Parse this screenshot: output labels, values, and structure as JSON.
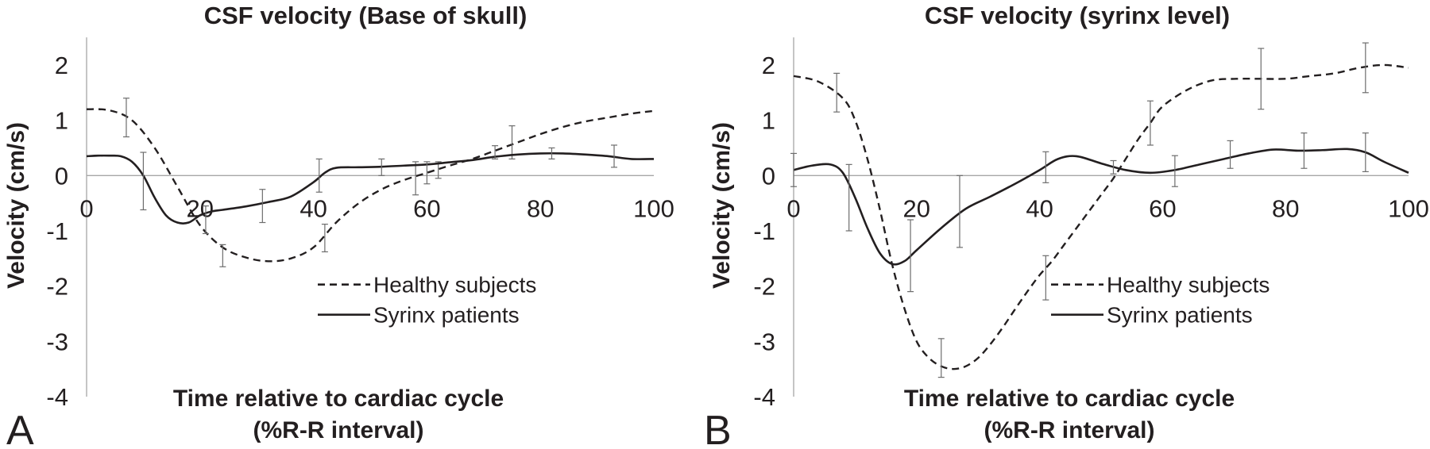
{
  "figure": {
    "panel_letters": [
      "A",
      "B"
    ],
    "colors": {
      "line": "#231f20",
      "axis": "#a6a6a6",
      "background": "#ffffff"
    }
  },
  "chart_data": [
    {
      "type": "line",
      "title": "CSF velocity (Base of skull)",
      "xlabel": [
        "Time relative to cardiac cycle",
        "(%R-R interval)"
      ],
      "ylabel": "Velocity (cm/s)",
      "xlim": [
        0,
        100
      ],
      "ylim": [
        -4,
        2.5
      ],
      "x_ticks": [
        "0",
        "20",
        "40",
        "60",
        "80",
        "100"
      ],
      "y_ticks": [
        "-4",
        "-3",
        "-2",
        "-1",
        "0",
        "1",
        "2"
      ],
      "grid": false,
      "legend_position": "lower-right",
      "series": [
        {
          "name": "Healthy subjects",
          "style": "dashed",
          "x": [
            0,
            4,
            8,
            12,
            16,
            20,
            24,
            28,
            32,
            36,
            40,
            44,
            48,
            52,
            56,
            60,
            64,
            68,
            72,
            76,
            80,
            84,
            88,
            92,
            96,
            100
          ],
          "y": [
            1.2,
            1.18,
            1.0,
            0.5,
            -0.2,
            -0.9,
            -1.3,
            -1.48,
            -1.55,
            -1.5,
            -1.3,
            -0.85,
            -0.5,
            -0.25,
            -0.08,
            0.05,
            0.18,
            0.3,
            0.45,
            0.6,
            0.75,
            0.88,
            0.98,
            1.05,
            1.12,
            1.17
          ],
          "error_bars": [
            {
              "x": 7,
              "y": 1.05,
              "err": 0.35
            },
            {
              "x": 24,
              "y": -1.45,
              "err": 0.2
            },
            {
              "x": 42,
              "y": -1.13,
              "err": 0.25
            },
            {
              "x": 58,
              "y": -0.05,
              "err": 0.3
            },
            {
              "x": 62,
              "y": 0.1,
              "err": 0.15
            },
            {
              "x": 75,
              "y": 0.6,
              "err": 0.3
            }
          ]
        },
        {
          "name": "Syrinx patients",
          "style": "solid",
          "x": [
            0,
            2,
            4,
            6,
            8,
            10,
            12,
            14,
            16,
            18,
            20,
            22,
            24,
            28,
            32,
            36,
            40,
            42,
            44,
            48,
            52,
            56,
            60,
            64,
            68,
            72,
            76,
            80,
            84,
            88,
            92,
            96,
            100
          ],
          "y": [
            0.35,
            0.36,
            0.36,
            0.35,
            0.25,
            0.0,
            -0.4,
            -0.72,
            -0.85,
            -0.85,
            -0.72,
            -0.65,
            -0.62,
            -0.56,
            -0.48,
            -0.38,
            -0.12,
            0.05,
            0.14,
            0.15,
            0.16,
            0.18,
            0.2,
            0.24,
            0.28,
            0.34,
            0.38,
            0.4,
            0.4,
            0.38,
            0.35,
            0.3,
            0.3
          ],
          "error_bars": [
            {
              "x": 10,
              "y": -0.1,
              "err": 0.52
            },
            {
              "x": 21,
              "y": -0.8,
              "err": 0.25
            },
            {
              "x": 31,
              "y": -0.55,
              "err": 0.3
            },
            {
              "x": 41,
              "y": 0.0,
              "err": 0.3
            },
            {
              "x": 52,
              "y": 0.15,
              "err": 0.15
            },
            {
              "x": 60,
              "y": 0.05,
              "err": 0.2
            },
            {
              "x": 72,
              "y": 0.42,
              "err": 0.12
            },
            {
              "x": 82,
              "y": 0.4,
              "err": 0.1
            },
            {
              "x": 93,
              "y": 0.35,
              "err": 0.2
            }
          ]
        }
      ]
    },
    {
      "type": "line",
      "title": "CSF velocity (syrinx level)",
      "xlabel": [
        "Time relative to cardiac cycle",
        "(%R-R interval)"
      ],
      "ylabel": "Velocity (cm/s)",
      "xlim": [
        0,
        100
      ],
      "ylim": [
        -4,
        2.5
      ],
      "x_ticks": [
        "0",
        "20",
        "40",
        "60",
        "80",
        "100"
      ],
      "y_ticks": [
        "-4",
        "-3",
        "-2",
        "-1",
        "0",
        "1",
        "2"
      ],
      "grid": false,
      "legend_position": "lower-right",
      "series": [
        {
          "name": "Healthy subjects",
          "style": "dashed",
          "x": [
            0,
            4,
            8,
            10,
            12,
            14,
            16,
            18,
            20,
            22,
            24,
            26,
            28,
            30,
            32,
            34,
            36,
            38,
            40,
            42,
            44,
            46,
            48,
            50,
            52,
            54,
            56,
            58,
            60,
            64,
            68,
            72,
            76,
            80,
            84,
            88,
            92,
            96,
            100
          ],
          "y": [
            1.8,
            1.7,
            1.4,
            1.0,
            0.3,
            -0.6,
            -1.6,
            -2.4,
            -3.0,
            -3.3,
            -3.45,
            -3.5,
            -3.45,
            -3.3,
            -3.05,
            -2.75,
            -2.42,
            -2.1,
            -1.8,
            -1.55,
            -1.25,
            -0.95,
            -0.65,
            -0.35,
            -0.05,
            0.3,
            0.65,
            0.95,
            1.25,
            1.55,
            1.72,
            1.75,
            1.75,
            1.75,
            1.8,
            1.85,
            1.95,
            2.0,
            1.95
          ],
          "error_bars": [
            {
              "x": 7,
              "y": 1.5,
              "err": 0.35
            },
            {
              "x": 24,
              "y": -3.3,
              "err": 0.35
            },
            {
              "x": 41,
              "y": -1.85,
              "err": 0.4
            },
            {
              "x": 58,
              "y": 0.95,
              "err": 0.4
            },
            {
              "x": 76,
              "y": 1.75,
              "err": 0.55
            },
            {
              "x": 93,
              "y": 1.95,
              "err": 0.45
            }
          ]
        },
        {
          "name": "Syrinx patients",
          "style": "solid",
          "x": [
            0,
            3,
            6,
            8,
            10,
            12,
            14,
            16,
            18,
            20,
            24,
            28,
            32,
            36,
            40,
            43,
            46,
            50,
            54,
            58,
            62,
            66,
            70,
            74,
            78,
            82,
            86,
            90,
            93,
            96,
            100
          ],
          "y": [
            0.1,
            0.18,
            0.2,
            0.05,
            -0.4,
            -0.95,
            -1.4,
            -1.6,
            -1.55,
            -1.35,
            -0.95,
            -0.6,
            -0.38,
            -0.15,
            0.1,
            0.3,
            0.35,
            0.22,
            0.1,
            0.05,
            0.1,
            0.2,
            0.3,
            0.4,
            0.47,
            0.45,
            0.46,
            0.48,
            0.42,
            0.25,
            0.05
          ],
          "error_bars": [
            {
              "x": 0,
              "y": 0.1,
              "err": 0.3
            },
            {
              "x": 9,
              "y": -0.4,
              "err": 0.6
            },
            {
              "x": 19,
              "y": -1.45,
              "err": 0.65
            },
            {
              "x": 27,
              "y": -0.65,
              "err": 0.65
            },
            {
              "x": 41,
              "y": 0.15,
              "err": 0.28
            },
            {
              "x": 52,
              "y": 0.15,
              "err": 0.12
            },
            {
              "x": 62,
              "y": 0.08,
              "err": 0.28
            },
            {
              "x": 71,
              "y": 0.38,
              "err": 0.25
            },
            {
              "x": 83,
              "y": 0.45,
              "err": 0.32
            },
            {
              "x": 93,
              "y": 0.42,
              "err": 0.35
            }
          ]
        }
      ]
    }
  ]
}
